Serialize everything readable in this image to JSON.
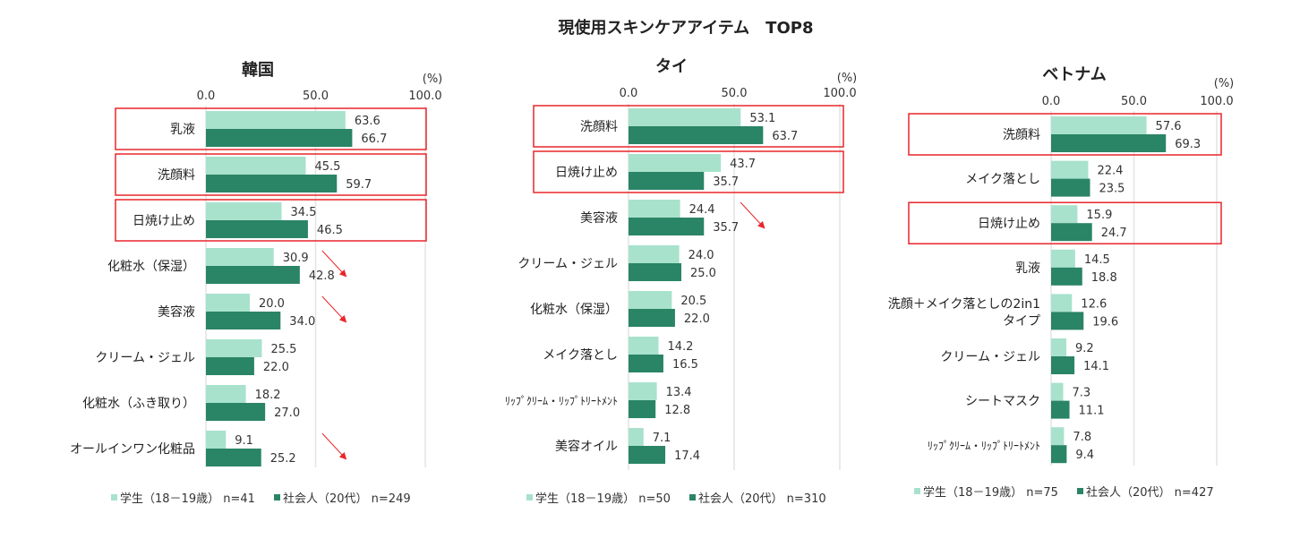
{
  "title": "現使用スキンケアアイテム　TOP8",
  "colors": {
    "student": "#a8e2cc",
    "worker": "#2a8466",
    "highlight": "#e8262b",
    "arrow": "#e8262b",
    "grid": "#e4e4e4"
  },
  "chart_data": [
    {
      "type": "bar",
      "orientation": "horizontal",
      "title": "韓国",
      "unit": "(%)",
      "xlim": [
        0,
        100
      ],
      "ticks": [
        "0.0",
        "50.0",
        "100.0"
      ],
      "categories": [
        "乳液",
        "洗顔料",
        "日焼け止め",
        "化粧水（保湿）",
        "美容液",
        "クリーム・ジェル",
        "化粧水（ふき取り）",
        "オールインワン化粧品"
      ],
      "series": [
        {
          "name": "学生（18－19歳） n=41",
          "values": [
            63.6,
            45.5,
            34.5,
            30.9,
            20.0,
            25.5,
            18.2,
            9.1
          ]
        },
        {
          "name": "社会人（20代） n=249",
          "values": [
            66.7,
            59.7,
            46.5,
            42.8,
            34.0,
            22.0,
            27.0,
            25.2
          ]
        }
      ],
      "highlighted": [
        "乳液",
        "洗顔料",
        "日焼け止め"
      ],
      "arrows": [
        "化粧水（保湿）",
        "美容液",
        "オールインワン化粧品"
      ],
      "grid": true,
      "legend": "bottom"
    },
    {
      "type": "bar",
      "orientation": "horizontal",
      "title": "タイ",
      "unit": "(%)",
      "xlim": [
        0,
        100
      ],
      "ticks": [
        "0.0",
        "50.0",
        "100.0"
      ],
      "categories": [
        "洗顔料",
        "日焼け止め",
        "美容液",
        "クリーム・ジェル",
        "化粧水（保湿）",
        "メイク落とし",
        "ﾘｯﾌﾟｸﾘｰﾑ・ﾘｯﾌﾟﾄﾘｰﾄﾒﾝﾄ",
        "美容オイル"
      ],
      "series": [
        {
          "name": "学生（18－19歳） n=50",
          "values": [
            53.1,
            43.7,
            24.4,
            24.0,
            20.5,
            14.2,
            13.4,
            7.1
          ]
        },
        {
          "name": "社会人（20代） n=310",
          "values": [
            63.7,
            35.7,
            35.7,
            25.0,
            22.0,
            16.5,
            12.8,
            17.4
          ]
        }
      ],
      "highlighted": [
        "洗顔料",
        "日焼け止め"
      ],
      "arrows": [
        "美容液"
      ],
      "grid": true,
      "legend": "bottom"
    },
    {
      "type": "bar",
      "orientation": "horizontal",
      "title": "ベトナム",
      "unit": "(%)",
      "xlim": [
        0,
        100
      ],
      "ticks": [
        "0.0",
        "50.0",
        "100.0"
      ],
      "categories": [
        "洗顔料",
        "メイク落とし",
        "日焼け止め",
        "乳液",
        "洗顔＋メイク落としの2in1|タイプ",
        "クリーム・ジェル",
        "シートマスク",
        "ﾘｯﾌﾟｸﾘｰﾑ・ﾘｯﾌﾟﾄﾘｰﾄﾒﾝﾄ"
      ],
      "series": [
        {
          "name": "学生（18－19歳） n=75",
          "values": [
            57.6,
            22.4,
            15.9,
            14.5,
            12.6,
            9.2,
            7.3,
            7.8
          ]
        },
        {
          "name": "社会人（20代） n=427",
          "values": [
            69.3,
            23.5,
            24.7,
            18.8,
            19.6,
            14.1,
            11.1,
            9.4
          ]
        }
      ],
      "highlighted": [
        "洗顔料",
        "日焼け止め"
      ],
      "arrows": [],
      "grid": true,
      "legend": "bottom"
    }
  ]
}
